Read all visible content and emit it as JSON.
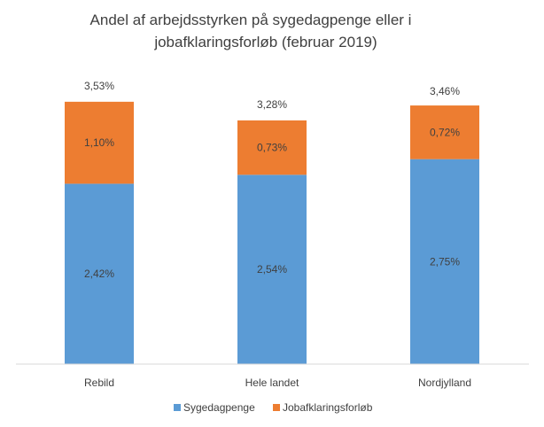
{
  "chart_data": {
    "type": "bar",
    "stacked": true,
    "title_lines": [
      "Andel af arbejdsstyrken på sygedagpenge eller i",
      "jobafklaringsforløb (februar 2019)"
    ],
    "categories": [
      "Rebild",
      "Hele landet",
      "Nordjylland"
    ],
    "series": [
      {
        "name": "Sygedagpenge",
        "color": "#5B9BD5",
        "values": [
          2.42,
          2.54,
          2.75
        ],
        "labels": [
          "2,42%",
          "2,54%",
          "2,75%"
        ]
      },
      {
        "name": "Jobafklaringsforløb",
        "color": "#ED7D31",
        "values": [
          1.1,
          0.73,
          0.72
        ],
        "labels": [
          "1,10%",
          "0,73%",
          "0,72%"
        ]
      }
    ],
    "totals": [
      3.53,
      3.28,
      3.46
    ],
    "total_labels": [
      "3,53%",
      "3,28%",
      "3,46%"
    ],
    "ylim": [
      0,
      4.0
    ],
    "grid": false,
    "y_axis_visible": false,
    "legend_position": "bottom"
  }
}
